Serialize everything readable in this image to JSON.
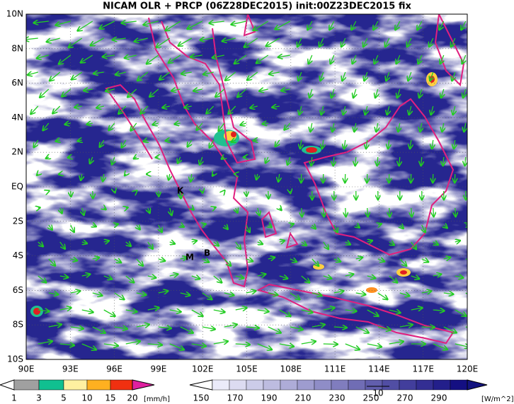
{
  "title": "NICAM OLR + PRCP (06Z28DEC2015) init:00Z23DEC2015 fix",
  "map": {
    "lat_labels": [
      "10N",
      "8N",
      "6N",
      "4N",
      "2N",
      "EQ",
      "2S",
      "4S",
      "6S",
      "8S",
      "10S"
    ],
    "lon_labels": [
      "90E",
      "93E",
      "96E",
      "99E",
      "102E",
      "105E",
      "108E",
      "111E",
      "114E",
      "117E",
      "120E"
    ],
    "place_labels": [
      "K",
      "M",
      "B"
    ],
    "vector_ref": "10"
  },
  "precip_legend": {
    "labels": [
      "1",
      "3",
      "5",
      "10",
      "15",
      "20"
    ],
    "unit": "[mm/h]"
  },
  "olr_legend": {
    "labels": [
      "150",
      "170",
      "190",
      "210",
      "230",
      "250",
      "270",
      "290"
    ],
    "unit": "[W/m^2]"
  }
}
